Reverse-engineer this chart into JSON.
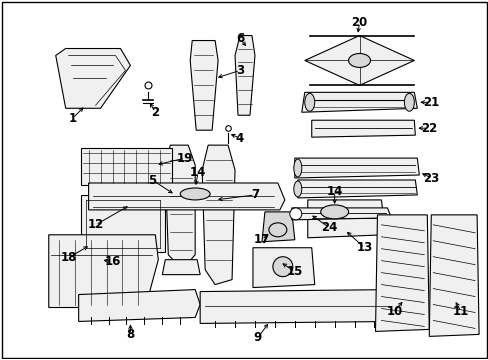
{
  "background_color": "#ffffff",
  "fig_width": 4.89,
  "fig_height": 3.6,
  "dpi": 100,
  "black": "#000000",
  "gray_fill": "#f0f0f0",
  "gray_mid": "#d8d8d8"
}
